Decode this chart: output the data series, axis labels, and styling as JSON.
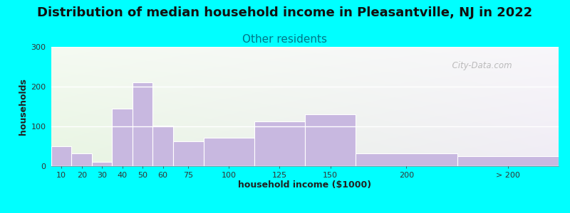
{
  "title": "Distribution of median household income in Pleasantville, NJ in 2022",
  "subtitle": "Other residents",
  "xlabel": "household income ($1000)",
  "ylabel": "households",
  "bar_labels": [
    "10",
    "20",
    "30",
    "40",
    "50",
    "60",
    "75",
    "100",
    "125",
    "150",
    "200",
    "> 200"
  ],
  "bar_values": [
    50,
    33,
    10,
    145,
    210,
    102,
    62,
    72,
    112,
    130,
    32,
    25
  ],
  "bar_left_edges": [
    0,
    10,
    20,
    30,
    40,
    50,
    60,
    75,
    100,
    125,
    150,
    200
  ],
  "bar_widths": [
    10,
    10,
    10,
    10,
    10,
    10,
    15,
    25,
    25,
    25,
    50,
    50
  ],
  "bar_color": "#c8b8e0",
  "bar_edgecolor": "#bbaacc",
  "bg_outer": "#00ffff",
  "title_fontsize": 13,
  "subtitle_fontsize": 11,
  "subtitle_color": "#007788",
  "ylim": [
    0,
    300
  ],
  "yticks": [
    0,
    100,
    200,
    300
  ],
  "watermark": "  City-Data.com"
}
